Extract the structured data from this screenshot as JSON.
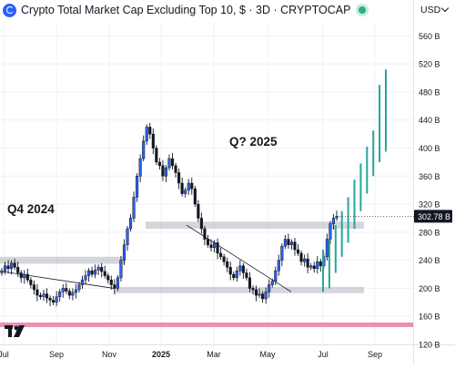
{
  "header": {
    "title": "Crypto Total Market Cap Excluding Top 10, $ · 3D · CRYPTOCAP",
    "currency": "USD",
    "status_color": "#2bb17e"
  },
  "annotations": {
    "q4_label": "Q4 2024",
    "q3_label": "Q? 2025"
  },
  "price_badge": {
    "value": "302.78 B",
    "color": "#131722"
  },
  "colors": {
    "candle": "#131722",
    "candle_fill_up": "#2962ff",
    "projection": "#26a69a",
    "support_band": "#b2b5be",
    "red_line": "#e891b0"
  },
  "chart_data": {
    "type": "candlestick",
    "ylim": [
      120,
      580
    ],
    "y_ticks": [
      "560 B",
      "520 B",
      "480 B",
      "440 B",
      "400 B",
      "360 B",
      "320 B",
      "280 B",
      "240 B",
      "200 B",
      "160 B",
      "120 B"
    ],
    "y_tick_values": [
      560,
      520,
      480,
      440,
      400,
      360,
      320,
      280,
      240,
      200,
      160,
      120
    ],
    "x_labels": [
      "Jul",
      "Sep",
      "Nov",
      "2025",
      "Mar",
      "May",
      "Jul",
      "Sep"
    ],
    "grid": true,
    "last_price": 302.78,
    "closes": [
      225,
      232,
      228,
      236,
      230,
      222,
      215,
      220,
      212,
      205,
      198,
      190,
      188,
      192,
      186,
      183,
      180,
      188,
      195,
      200,
      196,
      190,
      194,
      198,
      205,
      212,
      218,
      225,
      220,
      226,
      230,
      224,
      218,
      212,
      205,
      200,
      215,
      240,
      262,
      285,
      300,
      330,
      360,
      385,
      410,
      430,
      420,
      400,
      380,
      375,
      360,
      372,
      385,
      375,
      365,
      350,
      335,
      340,
      350,
      342,
      320,
      300,
      285,
      270,
      262,
      258,
      265,
      250,
      245,
      238,
      230,
      220,
      215,
      225,
      232,
      222,
      215,
      200,
      198,
      190,
      192,
      185,
      195,
      205,
      210,
      225,
      240,
      260,
      270,
      262,
      266,
      255,
      250,
      238,
      242,
      230,
      232,
      228,
      238,
      232,
      245,
      270,
      292,
      300,
      302.78
    ],
    "projection_bars": [
      {
        "low": 195,
        "high": 255
      },
      {
        "low": 200,
        "high": 270
      },
      {
        "low": 222,
        "high": 290
      },
      {
        "low": 245,
        "high": 310
      },
      {
        "low": 265,
        "high": 330
      },
      {
        "low": 285,
        "high": 355
      },
      {
        "low": 310,
        "high": 378
      },
      {
        "low": 335,
        "high": 402
      },
      {
        "low": 360,
        "high": 425
      },
      {
        "low": 380,
        "high": 490
      },
      {
        "low": 395,
        "high": 512
      }
    ],
    "zones": [
      {
        "from": 285,
        "to": 295
      },
      {
        "from": 235,
        "to": 245
      },
      {
        "from": 193,
        "to": 202
      }
    ],
    "red_level": 148,
    "trendline": [
      {
        "price": 240
      },
      {
        "price": 195
      }
    ]
  }
}
